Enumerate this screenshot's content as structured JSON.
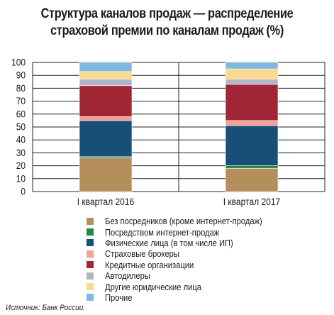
{
  "chart_data": {
    "type": "bar",
    "stacked": true,
    "title": "Структура каналов продаж — распределение\nстраховой премии по каналам продаж (%)",
    "categories": [
      "I квартал 2016",
      "I квартал 2017"
    ],
    "y_ticks": [
      0,
      10,
      20,
      30,
      40,
      50,
      60,
      70,
      80,
      90,
      100
    ],
    "ylim": [
      0,
      100
    ],
    "grid": true,
    "legend_position": "bottom",
    "series": [
      {
        "name": "Без посредников (кроме интернет-продаж)",
        "color": "#b48f5b",
        "values": [
          26,
          18
        ]
      },
      {
        "name": "Посредством интернет-продаж",
        "color": "#1e8a44",
        "values": [
          1,
          2
        ]
      },
      {
        "name": "Физические лица (в том числе ИП)",
        "color": "#174f77",
        "values": [
          28,
          31
        ]
      },
      {
        "name": "Страховые брокеры",
        "color": "#f4a093",
        "values": [
          3,
          4
        ]
      },
      {
        "name": "Кредитные организации",
        "color": "#a02535",
        "values": [
          24,
          28
        ]
      },
      {
        "name": "Автодилеры",
        "color": "#b2b4ca",
        "values": [
          5,
          4
        ]
      },
      {
        "name": "Другие юридические лица",
        "color": "#fbd98e",
        "values": [
          6,
          8
        ]
      },
      {
        "name": "Прочие",
        "color": "#7eb7e1",
        "values": [
          7,
          5
        ]
      }
    ]
  },
  "source": "Источник: Банк России."
}
